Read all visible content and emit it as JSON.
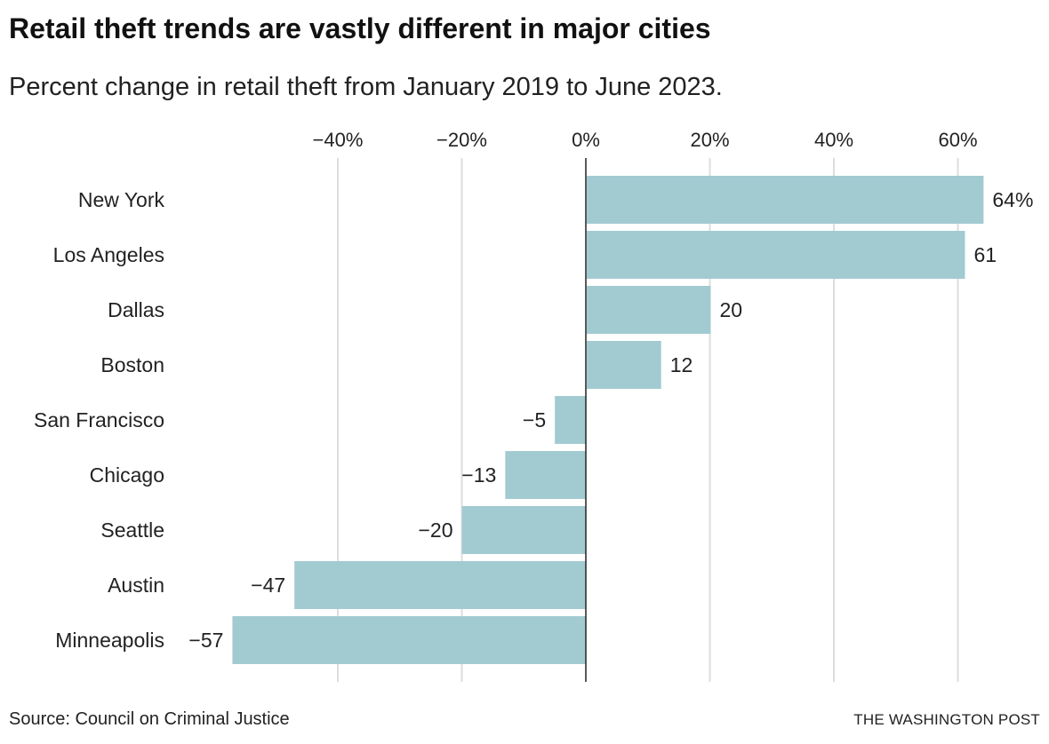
{
  "header": {
    "title": "Retail theft trends are vastly different in major cities",
    "subtitle": "Percent change in retail theft from January 2019 to June 2023."
  },
  "footer": {
    "source": "Source: Council on Criminal Justice",
    "credit": "THE WASHINGTON POST"
  },
  "colors": {
    "bar": "#a2cbd1",
    "grid": "#dddddd",
    "zero_line": "#222222"
  },
  "chart_data": {
    "type": "bar",
    "orientation": "horizontal",
    "title": "Retail theft trends are vastly different in major cities",
    "subtitle": "Percent change in retail theft from January 2019 to June 2023.",
    "xlabel": "",
    "ylabel": "",
    "xlim": [
      -57,
      64
    ],
    "x_ticks": [
      -40,
      -20,
      0,
      20,
      40,
      60
    ],
    "x_tick_labels": [
      "−40%",
      "−20%",
      "0%",
      "20%",
      "40%",
      "60%"
    ],
    "grid": true,
    "categories": [
      "New York",
      "Los Angeles",
      "Dallas",
      "Boston",
      "San Francisco",
      "Chicago",
      "Seattle",
      "Austin",
      "Minneapolis"
    ],
    "values": [
      64,
      61,
      20,
      12,
      -5,
      -13,
      -20,
      -47,
      -57
    ],
    "data_labels": [
      "64%",
      "61",
      "20",
      "12",
      "−5",
      "−13",
      "−20",
      "−47",
      "−57"
    ]
  }
}
